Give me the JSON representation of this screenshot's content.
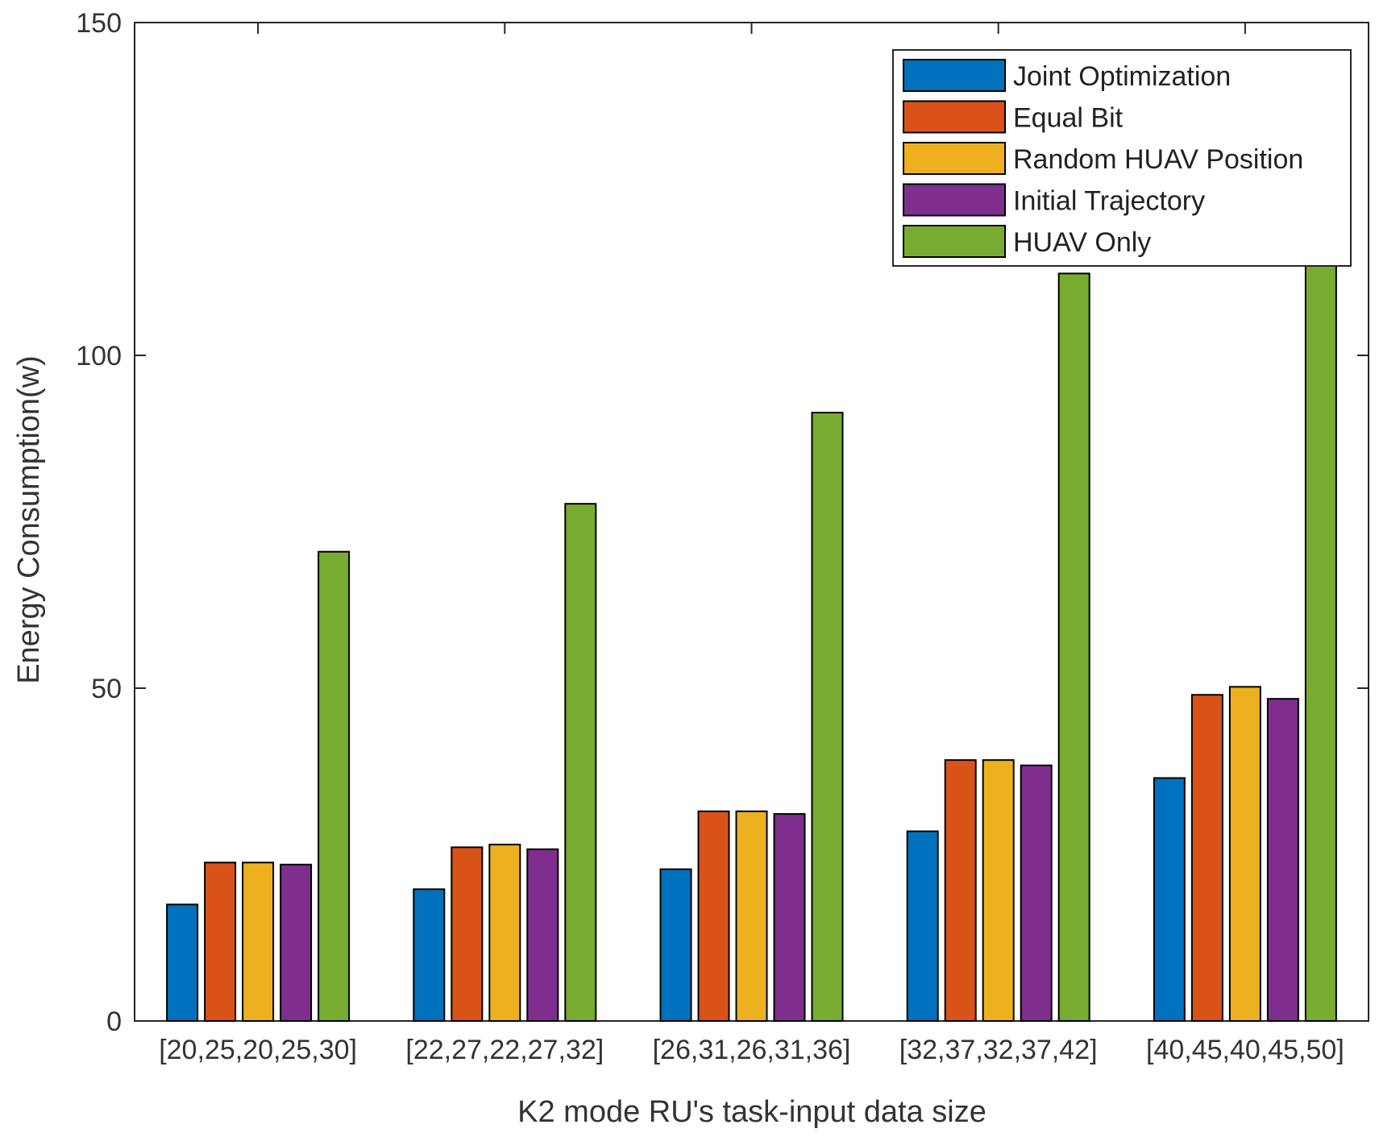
{
  "chart_data": {
    "type": "bar",
    "title": "",
    "xlabel": "K2 mode RU's task-input data size",
    "ylabel": "Energy Consumption(w)",
    "ylim": [
      0,
      150
    ],
    "yticks": [
      0,
      50,
      100,
      150
    ],
    "grid": false,
    "legend_position": "top-right",
    "categories": [
      "[20,25,20,25,30]",
      "[22,27,22,27,32]",
      "[26,31,26,31,36]",
      "[32,37,32,37,42]",
      "[40,45,40,45,50]"
    ],
    "series": [
      {
        "name": "Joint Optimization",
        "color": "#0072BD",
        "values": [
          17.5,
          19.8,
          22.8,
          28.5,
          36.5
        ]
      },
      {
        "name": "Equal Bit",
        "color": "#D95319",
        "values": [
          23.8,
          26.1,
          31.5,
          39.2,
          49.0
        ]
      },
      {
        "name": "Random HUAV Position",
        "color": "#EDB120",
        "values": [
          23.8,
          26.5,
          31.5,
          39.2,
          50.2
        ]
      },
      {
        "name": "Initial Trajectory",
        "color": "#7E2F8E",
        "values": [
          23.5,
          25.8,
          31.1,
          38.4,
          48.4
        ]
      },
      {
        "name": "HUAV Only",
        "color": "#77AC30",
        "values": [
          70.5,
          77.7,
          91.4,
          112.3,
          115.2
        ]
      }
    ]
  }
}
